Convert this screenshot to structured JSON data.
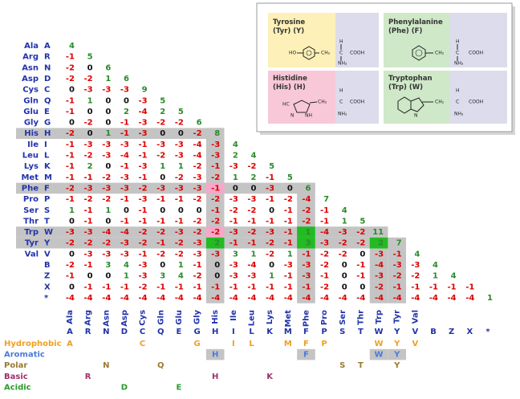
{
  "matrix": {
    "rows": [
      {
        "name": "Ala",
        "letter": "A",
        "values": [
          4
        ]
      },
      {
        "name": "Arg",
        "letter": "R",
        "values": [
          -1,
          5
        ]
      },
      {
        "name": "Asn",
        "letter": "N",
        "values": [
          -2,
          0,
          6
        ]
      },
      {
        "name": "Asp",
        "letter": "D",
        "values": [
          -2,
          -2,
          1,
          6
        ]
      },
      {
        "name": "Cys",
        "letter": "C",
        "values": [
          0,
          -3,
          -3,
          -3,
          9
        ]
      },
      {
        "name": "Gln",
        "letter": "Q",
        "values": [
          -1,
          1,
          0,
          0,
          -3,
          5
        ]
      },
      {
        "name": "Glu",
        "letter": "E",
        "values": [
          -1,
          0,
          0,
          2,
          -4,
          2,
          5
        ]
      },
      {
        "name": "Gly",
        "letter": "G",
        "values": [
          0,
          -2,
          0,
          -1,
          -3,
          -2,
          -2,
          6
        ]
      },
      {
        "name": "His",
        "letter": "H",
        "values": [
          -2,
          0,
          1,
          -1,
          -3,
          0,
          0,
          -2,
          8
        ]
      },
      {
        "name": "Ile",
        "letter": "I",
        "values": [
          -1,
          -3,
          -3,
          -3,
          -1,
          -3,
          -3,
          -4,
          -3,
          4
        ]
      },
      {
        "name": "Leu",
        "letter": "L",
        "values": [
          -1,
          -2,
          -3,
          -4,
          -1,
          -2,
          -3,
          -4,
          -3,
          2,
          4
        ]
      },
      {
        "name": "Lys",
        "letter": "K",
        "values": [
          -1,
          2,
          0,
          -1,
          -3,
          1,
          1,
          -2,
          -1,
          -3,
          -2,
          5
        ]
      },
      {
        "name": "Met",
        "letter": "M",
        "values": [
          -1,
          -1,
          -2,
          -3,
          -1,
          0,
          -2,
          -3,
          -2,
          1,
          2,
          -1,
          5
        ]
      },
      {
        "name": "Phe",
        "letter": "F",
        "values": [
          -2,
          -3,
          -3,
          -3,
          -2,
          -3,
          -3,
          -3,
          -1,
          0,
          0,
          -3,
          0,
          6
        ]
      },
      {
        "name": "Pro",
        "letter": "P",
        "values": [
          -1,
          -2,
          -2,
          -1,
          -3,
          -1,
          -1,
          -2,
          -2,
          -3,
          -3,
          -1,
          -2,
          -4,
          7
        ]
      },
      {
        "name": "Ser",
        "letter": "S",
        "values": [
          1,
          -1,
          1,
          0,
          -1,
          0,
          0,
          0,
          -1,
          -2,
          -2,
          0,
          -1,
          -2,
          -1,
          4
        ]
      },
      {
        "name": "Thr",
        "letter": "T",
        "values": [
          0,
          -1,
          0,
          -1,
          -1,
          -1,
          -1,
          -2,
          -2,
          -1,
          -1,
          -1,
          -1,
          -2,
          -1,
          1,
          5
        ]
      },
      {
        "name": "Trp",
        "letter": "W",
        "values": [
          -3,
          -3,
          -4,
          -4,
          -2,
          -2,
          -3,
          -2,
          -2,
          -3,
          -2,
          -3,
          -1,
          1,
          -4,
          -3,
          -2,
          11
        ]
      },
      {
        "name": "Tyr",
        "letter": "Y",
        "values": [
          -2,
          -2,
          -2,
          -3,
          -2,
          -1,
          -2,
          -3,
          2,
          -1,
          -1,
          -2,
          -1,
          3,
          -3,
          -2,
          -2,
          2,
          7
        ]
      },
      {
        "name": "Val",
        "letter": "V",
        "values": [
          0,
          -3,
          -3,
          -3,
          -1,
          -2,
          -2,
          -3,
          -3,
          3,
          1,
          -2,
          1,
          -1,
          -2,
          -2,
          0,
          -3,
          -1,
          4
        ]
      },
      {
        "name": null,
        "letter": "B",
        "values": [
          -2,
          -1,
          3,
          4,
          -3,
          0,
          1,
          -1,
          0,
          -3,
          -4,
          0,
          -3,
          -3,
          -2,
          0,
          -1,
          -4,
          -3,
          -3,
          4
        ]
      },
      {
        "name": null,
        "letter": "Z",
        "values": [
          -1,
          0,
          0,
          1,
          -3,
          3,
          4,
          -2,
          0,
          -3,
          -3,
          1,
          -1,
          -3,
          -1,
          0,
          -1,
          -3,
          -2,
          -2,
          1,
          4
        ]
      },
      {
        "name": null,
        "letter": "X",
        "values": [
          0,
          -1,
          -1,
          -1,
          -2,
          -1,
          -1,
          -1,
          -1,
          -1,
          -1,
          -1,
          -1,
          -1,
          -2,
          0,
          0,
          -2,
          -1,
          -1,
          -1,
          -1,
          -1
        ]
      },
      {
        "name": null,
        "letter": "*",
        "values": [
          -4,
          -4,
          -4,
          -4,
          -4,
          -4,
          -4,
          -4,
          -4,
          -4,
          -4,
          -4,
          -4,
          -4,
          -4,
          -4,
          -4,
          -4,
          -4,
          -4,
          -4,
          -4,
          -4,
          1
        ]
      }
    ],
    "shaded": [
      8,
      13,
      17,
      18
    ],
    "pink_cells": [
      [
        13,
        8
      ],
      [
        17,
        8
      ]
    ],
    "green_cells": [
      [
        17,
        13
      ],
      [
        18,
        8
      ],
      [
        18,
        13
      ],
      [
        18,
        17
      ]
    ],
    "colors": {
      "positive": "#2a8a2a",
      "zero": "#111111",
      "negative": "#dd0000",
      "shade": "#c4c4c4",
      "pink": "#f7a8c8",
      "green": "#22bb22"
    }
  },
  "properties": [
    {
      "name": "Hydrophobic",
      "color": "#f0a020",
      "letters": [
        "A",
        "C",
        "G",
        "I",
        "L",
        "M",
        "F",
        "P",
        "W",
        "Y",
        "V"
      ]
    },
    {
      "name": "Aromatic",
      "color": "#4a7ad8",
      "letters": [
        "H",
        "F",
        "W",
        "Y"
      ]
    },
    {
      "name": "Polar",
      "color": "#9a7a30",
      "letters": [
        "N",
        "Q",
        "S",
        "T",
        "Y"
      ]
    },
    {
      "name": "Basic",
      "color": "#a0306a",
      "letters": [
        "R",
        "H",
        "K"
      ]
    },
    {
      "name": "Acidic",
      "color": "#2a9a2a",
      "letters": [
        "D",
        "E"
      ]
    }
  ],
  "structures": {
    "panels": [
      {
        "title": "Tyrosine",
        "subtitle": "(Tyr) (Y)"
      },
      {
        "title": "Phenylalanine",
        "subtitle": "(Phe) (F)"
      },
      {
        "title": "Histidine",
        "subtitle": "(His) (H)"
      },
      {
        "title": "Tryptophan",
        "subtitle": "(Trp) (W)"
      }
    ],
    "atoms": {
      "HO": "HO",
      "CH2": "CH₂",
      "C": "C",
      "H": "H",
      "COOH": "COOH",
      "NH2": "NH₂",
      "N": "N",
      "NH": "NH",
      "HC": "HC"
    }
  }
}
